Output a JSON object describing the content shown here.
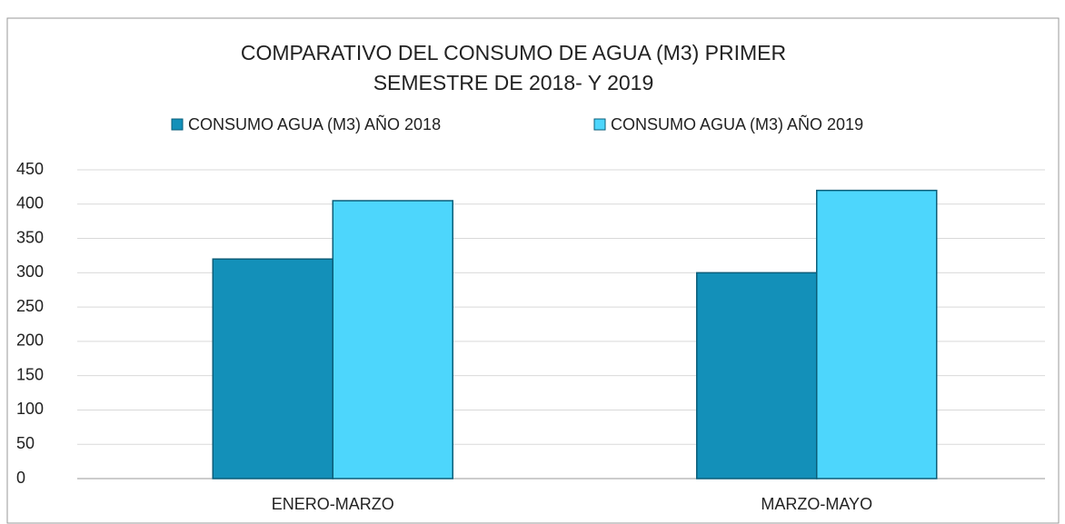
{
  "chart_data": {
    "type": "bar",
    "title": [
      "COMPARATIVO DEL CONSUMO DE AGUA (M3)  PRIMER",
      "SEMESTRE DE 2018- Y 2019"
    ],
    "categories": [
      "ENERO-MARZO",
      "MARZO-MAYO"
    ],
    "series": [
      {
        "name": "CONSUMO AGUA  (M3) AÑO 2018",
        "color": "#1390b9",
        "values": [
          320,
          300
        ]
      },
      {
        "name": "CONSUMO AGUA  (M3) AÑO 2019",
        "color": "#4dd6fc",
        "values": [
          405,
          420
        ]
      }
    ],
    "ylim": [
      0,
      450
    ],
    "yticks": [
      0,
      50,
      100,
      150,
      200,
      250,
      300,
      350,
      400,
      450
    ],
    "grid": true,
    "legend": "top"
  }
}
